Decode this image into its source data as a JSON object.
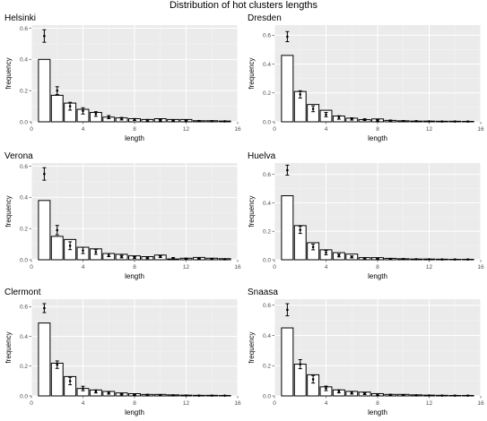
{
  "title": "Distribution of hot clusters lengths",
  "colors": {
    "panel_bg": "#ebebeb",
    "grid_major": "#ffffff",
    "grid_minor": "#f4f4f4",
    "bar_fill": "#ffffff",
    "bar_stroke": "#000000",
    "point": "#000000"
  },
  "chart_data": [
    {
      "type": "bar",
      "title": "Helsinki",
      "xlabel": "length",
      "ylabel": "frequency",
      "xlim": [
        0,
        16
      ],
      "ylim": [
        0,
        0.62
      ],
      "xticks": [
        0,
        4,
        8,
        12,
        16
      ],
      "yticks": [
        0.0,
        0.2,
        0.4,
        0.6
      ],
      "grid": true,
      "x": [
        1,
        2,
        3,
        4,
        5,
        6,
        7,
        8,
        9,
        10,
        11,
        12,
        13,
        14,
        15
      ],
      "values": [
        0.4,
        0.17,
        0.12,
        0.08,
        0.06,
        0.03,
        0.025,
        0.02,
        0.015,
        0.02,
        0.015,
        0.015,
        0.007,
        0.007,
        0.005
      ],
      "points": {
        "y": [
          0.55,
          0.2,
          0.1,
          0.07,
          0.05,
          0.03,
          0.02,
          0.015,
          0.01,
          0.01,
          0.01,
          0.007,
          0.005,
          0.004,
          0.003
        ],
        "err": [
          0.04,
          0.025,
          0.025,
          0.02,
          0.015,
          0.01,
          0.008,
          0.006,
          0.005,
          0.005,
          0.004,
          0.004,
          0.003,
          0.003,
          0.002
        ]
      }
    },
    {
      "type": "bar",
      "title": "Dresden",
      "xlabel": "length",
      "ylabel": "frequency",
      "xlim": [
        0,
        16
      ],
      "ylim": [
        0,
        0.67
      ],
      "xticks": [
        0,
        4,
        8,
        12,
        16
      ],
      "yticks": [
        0.0,
        0.2,
        0.4,
        0.6
      ],
      "grid": true,
      "x": [
        1,
        2,
        3,
        4,
        5,
        6,
        7,
        8,
        9,
        10,
        11,
        12,
        13,
        14,
        15
      ],
      "values": [
        0.46,
        0.21,
        0.12,
        0.08,
        0.04,
        0.025,
        0.015,
        0.02,
        0.01,
        0.007,
        0.005,
        0.005,
        0.004,
        0.004,
        0.003
      ],
      "points": {
        "y": [
          0.59,
          0.19,
          0.09,
          0.05,
          0.03,
          0.02,
          0.015,
          0.01,
          0.008,
          0.005,
          0.004,
          0.003,
          0.002,
          0.002,
          0.002
        ],
        "err": [
          0.035,
          0.025,
          0.02,
          0.015,
          0.012,
          0.008,
          0.006,
          0.005,
          0.004,
          0.003,
          0.003,
          0.002,
          0.002,
          0.002,
          0.002
        ]
      }
    },
    {
      "type": "bar",
      "title": "Verona",
      "xlabel": "length",
      "ylabel": "frequency",
      "xlim": [
        0,
        16
      ],
      "ylim": [
        0,
        0.62
      ],
      "xticks": [
        0,
        4,
        8,
        12,
        16
      ],
      "yticks": [
        0.0,
        0.2,
        0.4,
        0.6
      ],
      "grid": true,
      "x": [
        1,
        2,
        3,
        4,
        5,
        6,
        7,
        8,
        9,
        10,
        11,
        12,
        13,
        14,
        15
      ],
      "values": [
        0.38,
        0.15,
        0.13,
        0.08,
        0.07,
        0.04,
        0.035,
        0.025,
        0.02,
        0.03,
        0.005,
        0.01,
        0.015,
        0.01,
        0.007
      ],
      "points": {
        "y": [
          0.55,
          0.19,
          0.09,
          0.06,
          0.05,
          0.03,
          0.02,
          0.015,
          0.012,
          0.02,
          0.01,
          0.007,
          0.006,
          0.005,
          0.003
        ],
        "err": [
          0.04,
          0.03,
          0.025,
          0.02,
          0.015,
          0.01,
          0.008,
          0.006,
          0.005,
          0.006,
          0.004,
          0.003,
          0.003,
          0.003,
          0.002
        ]
      }
    },
    {
      "type": "bar",
      "title": "Huelva",
      "xlabel": "length",
      "ylabel": "frequency",
      "xlim": [
        0,
        16
      ],
      "ylim": [
        0,
        0.68
      ],
      "xticks": [
        0,
        4,
        8,
        12,
        16
      ],
      "yticks": [
        0.0,
        0.2,
        0.4,
        0.6
      ],
      "grid": true,
      "x": [
        1,
        2,
        3,
        4,
        5,
        6,
        7,
        8,
        9,
        10,
        11,
        12,
        13,
        14,
        15
      ],
      "values": [
        0.45,
        0.24,
        0.12,
        0.07,
        0.05,
        0.04,
        0.015,
        0.015,
        0.01,
        0.007,
        0.005,
        0.005,
        0.004,
        0.003,
        0.003
      ],
      "points": {
        "y": [
          0.63,
          0.21,
          0.09,
          0.05,
          0.03,
          0.02,
          0.01,
          0.008,
          0.006,
          0.005,
          0.004,
          0.003,
          0.002,
          0.002,
          0.002
        ],
        "err": [
          0.035,
          0.025,
          0.02,
          0.015,
          0.01,
          0.007,
          0.005,
          0.004,
          0.003,
          0.003,
          0.002,
          0.002,
          0.002,
          0.002,
          0.002
        ]
      }
    },
    {
      "type": "bar",
      "title": "Clermont",
      "xlabel": "length",
      "ylabel": "frequency",
      "xlim": [
        0,
        16
      ],
      "ylim": [
        0,
        0.65
      ],
      "xticks": [
        0,
        4,
        8,
        12,
        16
      ],
      "yticks": [
        0.0,
        0.2,
        0.4,
        0.6
      ],
      "grid": true,
      "x": [
        1,
        2,
        3,
        4,
        5,
        6,
        7,
        8,
        9,
        10,
        11,
        12,
        13,
        14,
        15
      ],
      "values": [
        0.49,
        0.22,
        0.13,
        0.05,
        0.04,
        0.03,
        0.02,
        0.015,
        0.01,
        0.01,
        0.007,
        0.005,
        0.004,
        0.004,
        0.003
      ],
      "points": {
        "y": [
          0.59,
          0.21,
          0.1,
          0.05,
          0.03,
          0.02,
          0.012,
          0.01,
          0.007,
          0.005,
          0.004,
          0.003,
          0.002,
          0.002,
          0.002
        ],
        "err": [
          0.03,
          0.025,
          0.025,
          0.015,
          0.01,
          0.008,
          0.005,
          0.004,
          0.003,
          0.003,
          0.002,
          0.002,
          0.002,
          0.002,
          0.002
        ]
      }
    },
    {
      "type": "bar",
      "title": "Snaasa",
      "xlabel": "length",
      "ylabel": "frequency",
      "xlim": [
        0,
        16
      ],
      "ylim": [
        0,
        0.64
      ],
      "xticks": [
        0,
        4,
        8,
        12,
        16
      ],
      "yticks": [
        0.0,
        0.2,
        0.4,
        0.6
      ],
      "grid": true,
      "x": [
        1,
        2,
        3,
        4,
        5,
        6,
        7,
        8,
        9,
        10,
        11,
        12,
        13,
        14,
        15
      ],
      "values": [
        0.45,
        0.21,
        0.14,
        0.06,
        0.04,
        0.03,
        0.025,
        0.015,
        0.01,
        0.01,
        0.007,
        0.005,
        0.004,
        0.003,
        0.003
      ],
      "points": {
        "y": [
          0.57,
          0.21,
          0.11,
          0.05,
          0.03,
          0.02,
          0.015,
          0.01,
          0.007,
          0.005,
          0.004,
          0.003,
          0.002,
          0.002,
          0.002
        ],
        "err": [
          0.04,
          0.03,
          0.025,
          0.015,
          0.01,
          0.008,
          0.006,
          0.005,
          0.003,
          0.003,
          0.002,
          0.002,
          0.002,
          0.002,
          0.002
        ]
      }
    }
  ]
}
